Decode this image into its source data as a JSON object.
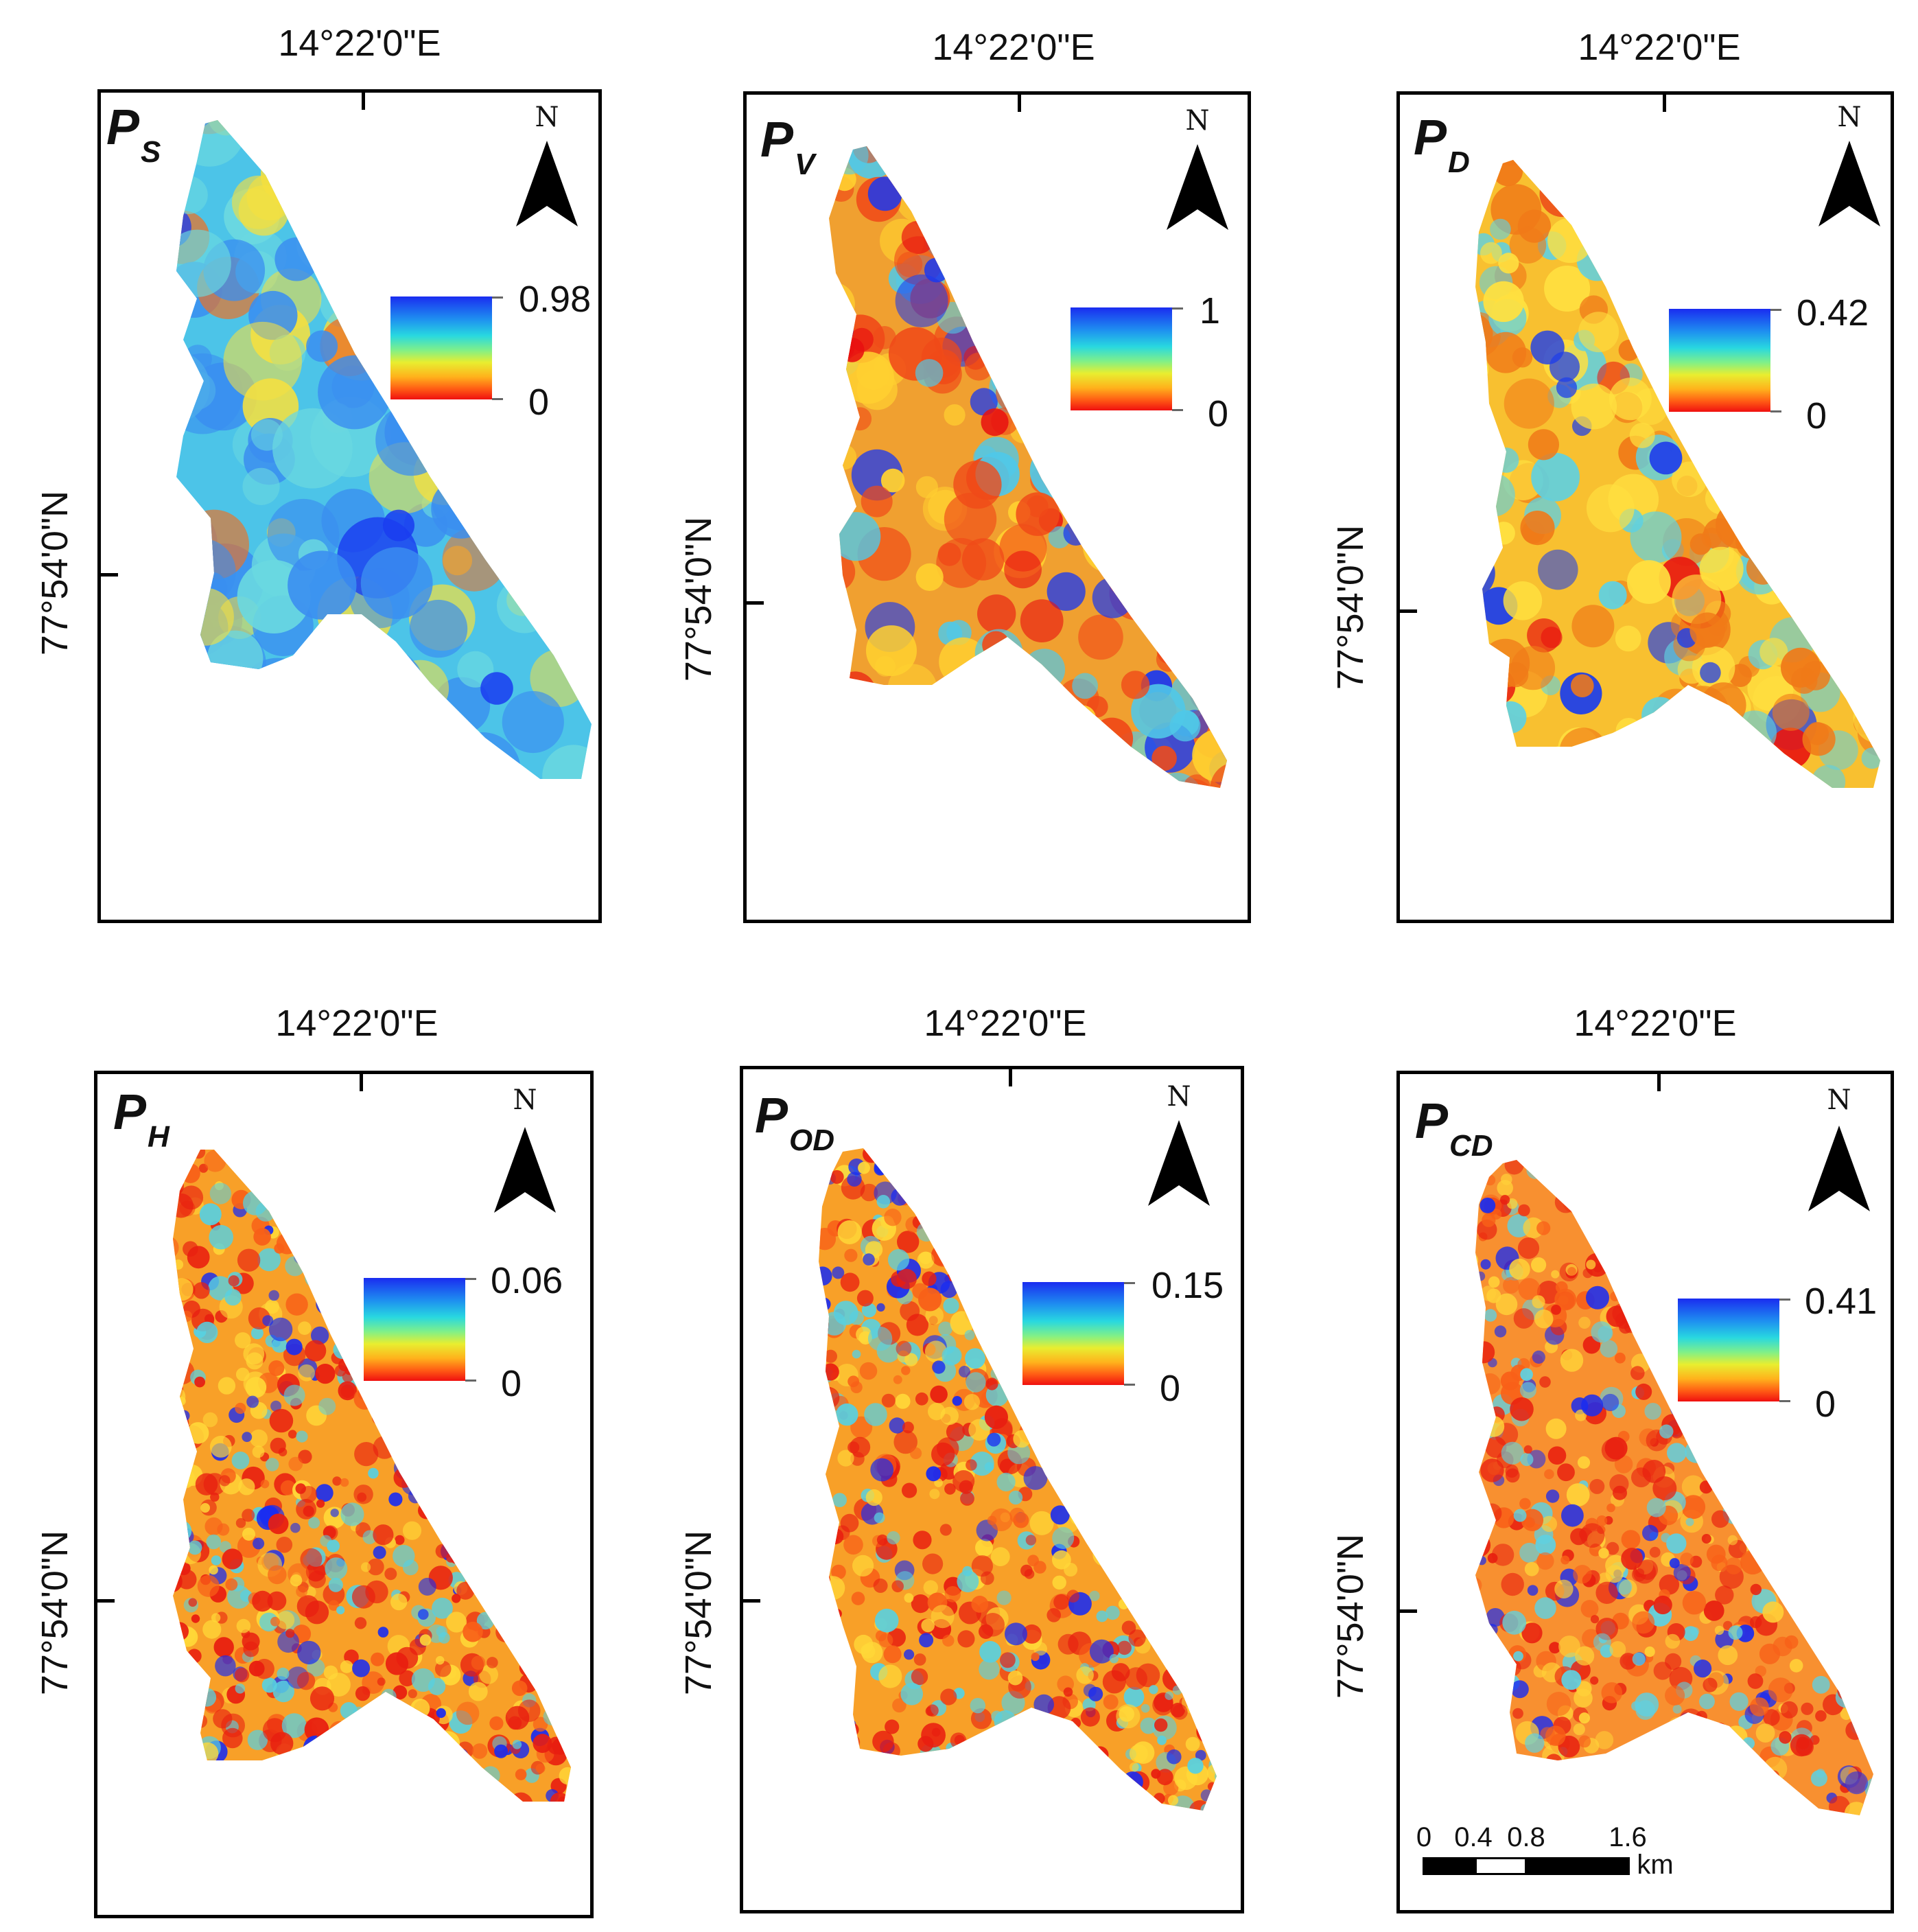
{
  "panels": [
    {
      "id": "ps",
      "title": "P",
      "subscript": "S",
      "lon": "14°22'0\"E",
      "lat": "77°54'0\"N",
      "max": "0.98",
      "min": "0",
      "style": "smooth-blue"
    },
    {
      "id": "pv",
      "title": "P",
      "subscript": "V",
      "lon": "14°22'0\"E",
      "lat": "77°54'0\"N",
      "max": "1",
      "min": "0",
      "style": "mixed-red"
    },
    {
      "id": "pd",
      "title": "P",
      "subscript": "D",
      "lon": "14°22'0\"E",
      "lat": "77°54'0\"N",
      "max": "0.42",
      "min": "0",
      "style": "yellow-orange"
    },
    {
      "id": "ph",
      "title": "P",
      "subscript": "H",
      "lon": "14°22'0\"E",
      "lat": "77°54'0\"N",
      "max": "0.06",
      "min": "0",
      "style": "speckle"
    },
    {
      "id": "pod",
      "title": "P",
      "subscript": "OD",
      "lon": "14°22'0\"E",
      "lat": "77°54'0\"N",
      "max": "0.15",
      "min": "0",
      "style": "speckle"
    },
    {
      "id": "pcd",
      "title": "P",
      "subscript": "CD",
      "lon": "14°22'0\"E",
      "lat": "77°54'0\"N",
      "max": "0.41",
      "min": "0",
      "style": "speckle-orange"
    }
  ],
  "north_letter": "N",
  "scale_bar": {
    "labels": [
      "0",
      "0.4",
      "0.8",
      "1.6"
    ],
    "unit": "km"
  },
  "colors": {
    "high": "#1a2cf0",
    "mid": "#28d8e0",
    "low_mid": "#e8ee30",
    "low": "#f01010"
  }
}
